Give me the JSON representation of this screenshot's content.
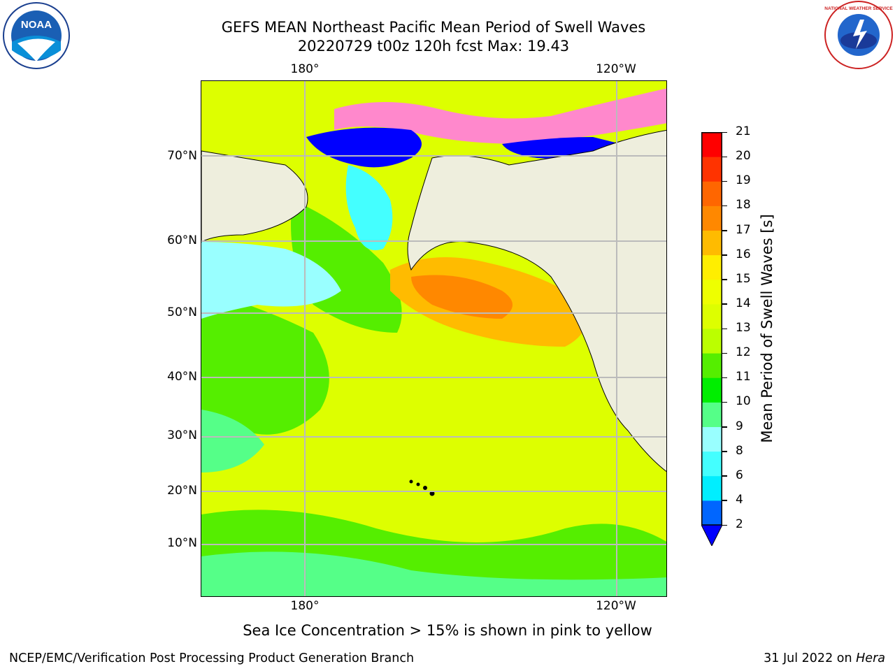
{
  "title": {
    "line1": "GEFS MEAN Northeast Pacific Mean Period of Swell Waves",
    "line2": "20220729 t00z 120h fcst   Max: 19.43"
  },
  "map": {
    "top_lon_labels": [
      "180°",
      "120°W"
    ],
    "bottom_lon_labels": [
      "180°",
      "120°W"
    ],
    "lat_labels": [
      "70°N",
      "60°N",
      "50°N",
      "40°N",
      "30°N",
      "20°N",
      "10°N"
    ],
    "land_color": "#EEEEDD",
    "grid": true
  },
  "colorbar": {
    "label": "Mean Period of Swell Waves [s]",
    "ticks": [
      "2",
      "4",
      "6",
      "8",
      "9",
      "10",
      "11",
      "12",
      "13",
      "14",
      "15",
      "16",
      "17",
      "18",
      "19",
      "20",
      "21"
    ],
    "colors": [
      "#0066FF",
      "#00EEFF",
      "#44FFFF",
      "#99FFFF",
      "#55FF88",
      "#00EE00",
      "#55EE00",
      "#BBFF00",
      "#DDFF00",
      "#EEFF00",
      "#FFEE00",
      "#FFBB00",
      "#FF8800",
      "#FF6600",
      "#FF3300",
      "#FF0000"
    ],
    "under_color": "#0000FF",
    "extend": "min"
  },
  "footnote": "Sea Ice Concentration > 15% is shown in pink to yellow",
  "footer": {
    "left": "NCEP/EMC/Verification Post Processing Product Generation Branch",
    "right_date": "31 Jul 2022 on",
    "right_machine": "Hera"
  },
  "logos": {
    "left": "noaa-logo",
    "left_text": "NOAA",
    "right": "national-weather-service-logo",
    "right_text": "NATIONAL WEATHER SERVICE"
  }
}
